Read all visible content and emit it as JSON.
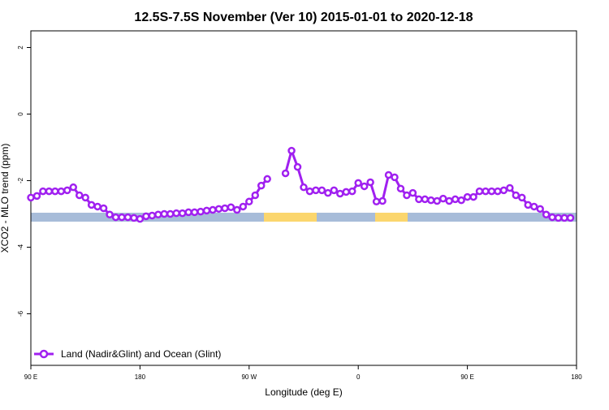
{
  "chart_data": {
    "type": "line",
    "title": "12.5S-7.5S November (Ver 10)   2015-01-01 to 2020-12-18",
    "x_label": "Longitude (deg E)",
    "y_label": "XCO2 - MLO trend (ppm)",
    "xlim": [
      90,
      540
    ],
    "ylim": [
      -7.55,
      2.5
    ],
    "xticks": [
      {
        "value": 90,
        "label": "90 E"
      },
      180,
      {
        "value": 270,
        "label": "90 W"
      },
      {
        "value": 360,
        "label": "0"
      },
      {
        "value": 450,
        "label": "90 E"
      },
      {
        "value": 540,
        "label": "180"
      }
    ],
    "yticks": [
      -6,
      -4,
      -2,
      0,
      2
    ],
    "grid": false,
    "legend_position": "bottom-left",
    "x": [
      90,
      95,
      100,
      105,
      110,
      115,
      120,
      125,
      130,
      135,
      140,
      145,
      150,
      155,
      160,
      165,
      170,
      175,
      180,
      185,
      190,
      195,
      200,
      205,
      210,
      215,
      220,
      225,
      230,
      235,
      240,
      245,
      250,
      255,
      260,
      265,
      270,
      275,
      280,
      285,
      290,
      295,
      300,
      305,
      310,
      315,
      320,
      325,
      330,
      335,
      340,
      345,
      350,
      355,
      360,
      365,
      370,
      375,
      380,
      385,
      390,
      395,
      400,
      405,
      410,
      415,
      420,
      425,
      430,
      435,
      440,
      445,
      450,
      455,
      460,
      465,
      470,
      475,
      480,
      485,
      490,
      495,
      500,
      505,
      510,
      515,
      520,
      525,
      530,
      535
    ],
    "series": [
      {
        "name": "Land (Nadir&Glint) and Ocean (Glint)",
        "color": "#a020f0",
        "values": [
          -2.51,
          -2.46,
          -2.32,
          -2.32,
          -2.32,
          -2.32,
          -2.29,
          -2.2,
          -2.44,
          -2.51,
          -2.73,
          -2.78,
          -2.83,
          -3.02,
          -3.1,
          -3.1,
          -3.1,
          -3.12,
          -3.15,
          -3.07,
          -3.05,
          -3.02,
          -3.0,
          -3.0,
          -2.98,
          -2.98,
          -2.95,
          -2.95,
          -2.93,
          -2.9,
          -2.88,
          -2.85,
          -2.83,
          -2.8,
          -2.88,
          -2.78,
          -2.63,
          -2.44,
          -2.15,
          -1.95,
          null,
          null,
          -1.78,
          -1.1,
          -1.59,
          -2.2,
          -2.32,
          -2.29,
          -2.29,
          -2.37,
          -2.29,
          -2.39,
          -2.34,
          -2.32,
          -2.07,
          -2.17,
          -2.05,
          -2.63,
          -2.61,
          -1.83,
          -1.9,
          -2.24,
          -2.44,
          -2.37,
          -2.56,
          -2.56,
          -2.59,
          -2.61,
          -2.54,
          -2.61,
          -2.56,
          -2.59,
          -2.49,
          -2.49,
          -2.32,
          -2.32,
          -2.32,
          -2.32,
          -2.29,
          -2.22,
          -2.44,
          -2.51,
          -2.73,
          -2.78,
          -2.85,
          -3.02,
          -3.1,
          -3.12,
          -3.12,
          -3.12
        ]
      }
    ]
  }
}
